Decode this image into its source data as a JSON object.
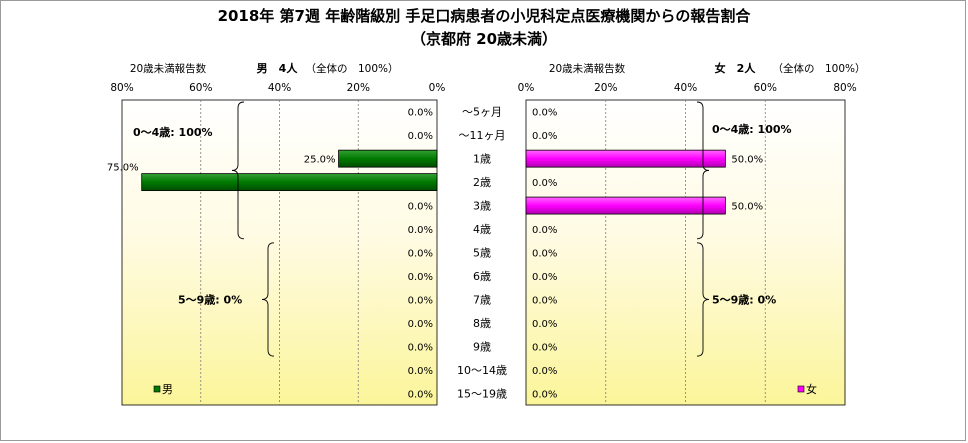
{
  "title": {
    "line1": "2018年 第7週 年齢階級別 手足口病患者の小児科定点医療機関からの報告割合",
    "line2": "（京都府 20歳未満）"
  },
  "chart_data": {
    "type": "bar",
    "orientation": "horizontal",
    "categories": [
      "～5ヶ月",
      "～11ヶ月",
      "1歳",
      "2歳",
      "3歳",
      "4歳",
      "5歳",
      "6歳",
      "7歳",
      "8歳",
      "9歳",
      "10～14歳",
      "15～19歳"
    ],
    "xlim": [
      0,
      80
    ],
    "x_ticks": [
      "80%",
      "60%",
      "40%",
      "20%",
      "0%"
    ],
    "x_ticks_right": [
      "0%",
      "20%",
      "40%",
      "60%",
      "80%"
    ],
    "grid": true,
    "left_panel": {
      "header_label": "20歳未満報告数",
      "header_total": "男　4人",
      "header_note": "（全体の　100%）",
      "legend": "男",
      "color": "#007a00",
      "values": [
        0,
        0,
        25,
        75,
        0,
        0,
        0,
        0,
        0,
        0,
        0,
        0,
        0
      ],
      "value_labels": [
        "0.0%",
        "0.0%",
        "25.0%",
        "75.0%",
        "0.0%",
        "0.0%",
        "0.0%",
        "0.0%",
        "0.0%",
        "0.0%",
        "0.0%",
        "0.0%",
        "0.0%"
      ],
      "group_labels": [
        {
          "text": "0～4歳: 100%",
          "from": 0,
          "to": 5
        },
        {
          "text": "5～9歳: 0%",
          "from": 6,
          "to": 10
        }
      ]
    },
    "right_panel": {
      "header_label": "20歳未満報告数",
      "header_total": "女　2人",
      "header_note": "（全体の　100%）",
      "legend": "女",
      "color": "#ff00ff",
      "values": [
        0,
        0,
        50,
        0,
        50,
        0,
        0,
        0,
        0,
        0,
        0,
        0,
        0
      ],
      "value_labels": [
        "0.0%",
        "0.0%",
        "50.0%",
        "0.0%",
        "50.0%",
        "0.0%",
        "0.0%",
        "0.0%",
        "0.0%",
        "0.0%",
        "0.0%",
        "0.0%",
        "0.0%"
      ],
      "group_labels": [
        {
          "text": "0～4歳: 100%",
          "from": 0,
          "to": 5
        },
        {
          "text": "5～9歳: 0%",
          "from": 6,
          "to": 10
        }
      ]
    }
  }
}
